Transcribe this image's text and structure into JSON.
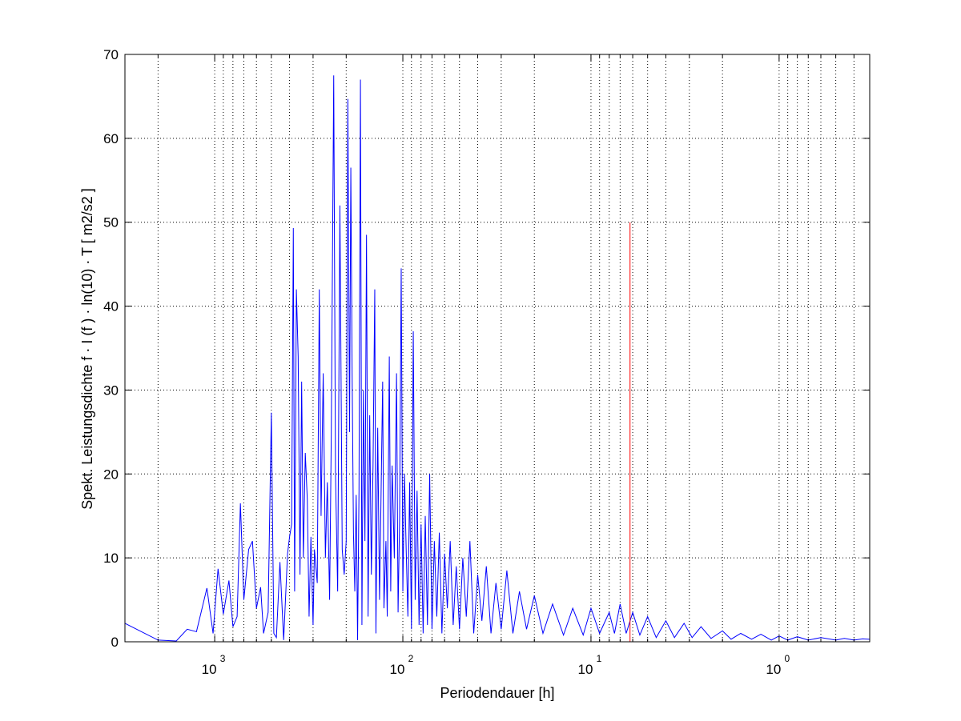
{
  "chart_data": {
    "type": "line",
    "xscale": "log",
    "x_reversed": true,
    "xlabel": "Periodendauer [h]",
    "ylabel": "Spekt. Leistungsdichte f · I (f ) · ln(10) · T [ m2/s2 ]",
    "xlim": [
      3000,
      0.33
    ],
    "ylim": [
      0,
      70
    ],
    "grid": true,
    "x_ticks": [
      {
        "base": "10",
        "exp": "3",
        "value": 1000
      },
      {
        "base": "10",
        "exp": "2",
        "value": 100
      },
      {
        "base": "10",
        "exp": "1",
        "value": 10
      },
      {
        "base": "10",
        "exp": "0",
        "value": 1
      }
    ],
    "y_ticks": [
      "0",
      "10",
      "20",
      "30",
      "40",
      "50",
      "60",
      "70"
    ],
    "colors": {
      "series": "#0000ff",
      "marker": "#ff0000",
      "axes": "#000000",
      "grid": "#000000"
    },
    "series": [
      {
        "color": "#0000ff",
        "points": [
          [
            3000,
            2.2
          ],
          [
            2000,
            0.2
          ],
          [
            1600,
            0.1
          ],
          [
            1400,
            1.5
          ],
          [
            1250,
            1.2
          ],
          [
            1100,
            6.4
          ],
          [
            1020,
            1.0
          ],
          [
            960,
            8.7
          ],
          [
            900,
            3.3
          ],
          [
            840,
            7.3
          ],
          [
            800,
            1.8
          ],
          [
            760,
            3.0
          ],
          [
            730,
            16.5
          ],
          [
            700,
            5.0
          ],
          [
            660,
            11.0
          ],
          [
            630,
            12.0
          ],
          [
            600,
            4.0
          ],
          [
            570,
            6.5
          ],
          [
            550,
            1.0
          ],
          [
            520,
            3.5
          ],
          [
            500,
            27.3
          ],
          [
            485,
            1.0
          ],
          [
            470,
            0.5
          ],
          [
            450,
            9.5
          ],
          [
            430,
            0.2
          ],
          [
            410,
            10.5
          ],
          [
            400,
            12.5
          ],
          [
            390,
            14.0
          ],
          [
            382,
            49.3
          ],
          [
            376,
            6.0
          ],
          [
            368,
            42.0
          ],
          [
            360,
            34.0
          ],
          [
            352,
            8.0
          ],
          [
            345,
            31.0
          ],
          [
            338,
            10.0
          ],
          [
            330,
            22.5
          ],
          [
            322,
            17.0
          ],
          [
            315,
            3.0
          ],
          [
            308,
            12.5
          ],
          [
            300,
            2.0
          ],
          [
            295,
            11.0
          ],
          [
            285,
            7.0
          ],
          [
            278,
            42.0
          ],
          [
            272,
            15.0
          ],
          [
            265,
            32.0
          ],
          [
            258,
            10.0
          ],
          [
            252,
            19.0
          ],
          [
            245,
            5.0
          ],
          [
            240,
            25.0
          ],
          [
            233,
            67.5
          ],
          [
            228,
            20.0
          ],
          [
            222,
            6.0
          ],
          [
            216,
            52.0
          ],
          [
            210,
            11.0
          ],
          [
            205,
            8.0
          ],
          [
            200,
            12.0
          ],
          [
            196,
            64.7
          ],
          [
            192,
            25.0
          ],
          [
            189,
            56.5
          ],
          [
            186,
            32.0
          ],
          [
            183,
            13.0
          ],
          [
            180,
            6.0
          ],
          [
            177,
            17.5
          ],
          [
            174,
            0.2
          ],
          [
            171,
            18.0
          ],
          [
            168,
            67.0
          ],
          [
            165,
            2.0
          ],
          [
            162,
            30.0
          ],
          [
            159,
            12.0
          ],
          [
            156,
            48.5
          ],
          [
            153,
            3.0
          ],
          [
            150,
            27.0
          ],
          [
            147,
            8.0
          ],
          [
            144,
            21.0
          ],
          [
            141,
            42.0
          ],
          [
            139,
            1.0
          ],
          [
            136,
            25.5
          ],
          [
            133,
            5.0
          ],
          [
            131,
            15.0
          ],
          [
            128,
            31.0
          ],
          [
            126,
            4.0
          ],
          [
            123,
            12.0
          ],
          [
            121,
            3.0
          ],
          [
            118,
            34.0
          ],
          [
            116,
            6.0
          ],
          [
            114,
            21.0
          ],
          [
            111,
            10.0
          ],
          [
            108,
            32.0
          ],
          [
            106,
            3.5
          ],
          [
            104,
            15.0
          ],
          [
            102,
            44.5
          ],
          [
            100,
            6.0
          ],
          [
            98,
            20.0
          ],
          [
            96,
            11.0
          ],
          [
            94,
            3.0
          ],
          [
            92,
            19.0
          ],
          [
            90,
            1.5
          ],
          [
            88,
            37.0
          ],
          [
            86,
            5.0
          ],
          [
            84,
            18.0
          ],
          [
            82,
            2.0
          ],
          [
            80,
            14.0
          ],
          [
            78,
            1.0
          ],
          [
            76,
            15.0
          ],
          [
            74,
            2.0
          ],
          [
            72,
            20.0
          ],
          [
            70,
            1.5
          ],
          [
            68,
            12.0
          ],
          [
            66,
            3.0
          ],
          [
            64,
            13.0
          ],
          [
            62,
            1.0
          ],
          [
            60,
            10.5
          ],
          [
            58,
            4.0
          ],
          [
            56,
            12.0
          ],
          [
            54,
            2.0
          ],
          [
            52,
            9.0
          ],
          [
            50,
            1.5
          ],
          [
            48,
            10.0
          ],
          [
            46,
            3.0
          ],
          [
            44,
            12.0
          ],
          [
            42,
            1.0
          ],
          [
            40,
            8.0
          ],
          [
            38,
            2.5
          ],
          [
            36,
            9.0
          ],
          [
            34,
            1.0
          ],
          [
            32,
            7.0
          ],
          [
            30,
            1.5
          ],
          [
            28,
            8.5
          ],
          [
            26,
            1.0
          ],
          [
            24,
            6.0
          ],
          [
            22,
            1.5
          ],
          [
            20,
            5.5
          ],
          [
            18,
            1.0
          ],
          [
            16,
            4.5
          ],
          [
            14,
            0.8
          ],
          [
            12.5,
            4.0
          ],
          [
            11,
            0.8
          ],
          [
            10,
            4.0
          ],
          [
            9,
            1.0
          ],
          [
            8,
            3.5
          ],
          [
            7.5,
            1.0
          ],
          [
            7,
            4.5
          ],
          [
            6.5,
            1.0
          ],
          [
            6,
            3.5
          ],
          [
            5.5,
            0.8
          ],
          [
            5,
            3.0
          ],
          [
            4.5,
            0.5
          ],
          [
            4,
            2.5
          ],
          [
            3.6,
            0.5
          ],
          [
            3.2,
            2.2
          ],
          [
            2.9,
            0.5
          ],
          [
            2.6,
            1.8
          ],
          [
            2.3,
            0.4
          ],
          [
            2,
            1.3
          ],
          [
            1.8,
            0.3
          ],
          [
            1.6,
            1.0
          ],
          [
            1.4,
            0.3
          ],
          [
            1.25,
            0.9
          ],
          [
            1.1,
            0.2
          ],
          [
            1.0,
            0.7
          ],
          [
            0.9,
            0.2
          ],
          [
            0.8,
            0.6
          ],
          [
            0.7,
            0.2
          ],
          [
            0.6,
            0.5
          ],
          [
            0.5,
            0.2
          ],
          [
            0.45,
            0.4
          ],
          [
            0.4,
            0.2
          ],
          [
            0.36,
            0.35
          ],
          [
            0.33,
            0.3
          ]
        ]
      }
    ],
    "marker_line": {
      "color": "#ff0000",
      "x": 6.2,
      "y": [
        0,
        50
      ]
    }
  }
}
